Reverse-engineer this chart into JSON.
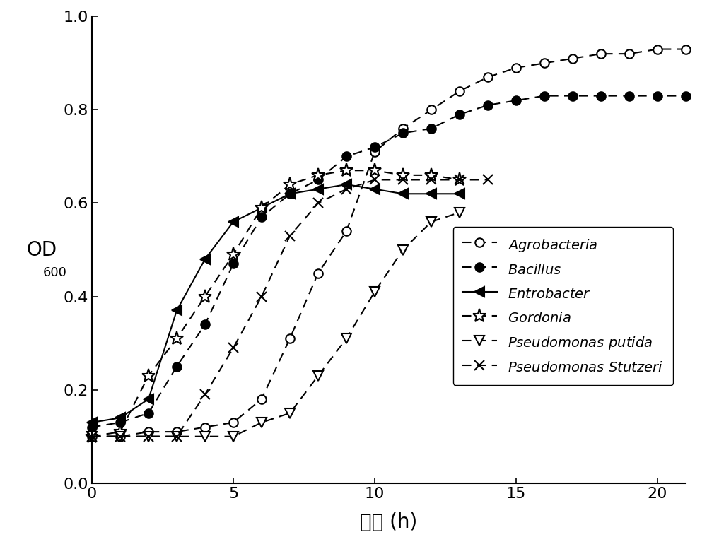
{
  "xlabel": "时间 (h)",
  "xlim": [
    0,
    21
  ],
  "ylim": [
    0.0,
    1.0
  ],
  "xticks": [
    0,
    5,
    10,
    15,
    20
  ],
  "yticks": [
    0.0,
    0.2,
    0.4,
    0.6,
    0.8,
    1.0
  ],
  "Agrobacteria": {
    "x": [
      0,
      1,
      2,
      3,
      4,
      5,
      6,
      7,
      8,
      9,
      10,
      11,
      12,
      13,
      14,
      15,
      16,
      17,
      18,
      19,
      20,
      21
    ],
    "y": [
      0.1,
      0.1,
      0.11,
      0.11,
      0.12,
      0.13,
      0.18,
      0.31,
      0.45,
      0.54,
      0.71,
      0.76,
      0.8,
      0.84,
      0.87,
      0.89,
      0.9,
      0.91,
      0.92,
      0.92,
      0.93,
      0.93
    ],
    "color": "#000000",
    "linestyle": "--",
    "marker": "o",
    "mfc": "white",
    "markersize": 9,
    "linewidth": 1.5
  },
  "Bacillus": {
    "x": [
      0,
      1,
      2,
      3,
      4,
      5,
      6,
      7,
      8,
      9,
      10,
      11,
      12,
      13,
      14,
      15,
      16,
      17,
      18,
      19,
      20,
      21
    ],
    "y": [
      0.12,
      0.13,
      0.15,
      0.25,
      0.34,
      0.47,
      0.57,
      0.62,
      0.65,
      0.7,
      0.72,
      0.75,
      0.76,
      0.79,
      0.81,
      0.82,
      0.83,
      0.83,
      0.83,
      0.83,
      0.83,
      0.83
    ],
    "color": "#000000",
    "linestyle": "--",
    "marker": "o",
    "mfc": "#000000",
    "markersize": 9,
    "linewidth": 1.5
  },
  "Entrobacter": {
    "x": [
      0,
      1,
      2,
      3,
      4,
      5,
      6,
      7,
      8,
      9,
      10,
      11,
      12,
      13
    ],
    "y": [
      0.13,
      0.14,
      0.18,
      0.37,
      0.48,
      0.56,
      0.59,
      0.62,
      0.63,
      0.64,
      0.63,
      0.62,
      0.62,
      0.62
    ],
    "color": "#000000",
    "linestyle": "-",
    "marker": "<",
    "mfc": "#000000",
    "markersize": 10,
    "linewidth": 1.5
  },
  "Gordonia": {
    "x": [
      0,
      1,
      2,
      3,
      4,
      5,
      6,
      7,
      8,
      9,
      10,
      11,
      12,
      13
    ],
    "y": [
      0.1,
      0.11,
      0.23,
      0.31,
      0.4,
      0.49,
      0.59,
      0.64,
      0.66,
      0.67,
      0.67,
      0.66,
      0.66,
      0.65
    ],
    "color": "#000000",
    "linestyle": "--",
    "marker": "*",
    "mfc": "white",
    "markersize": 14,
    "linewidth": 1.5
  },
  "Pseudomonas_putida": {
    "x": [
      0,
      1,
      2,
      3,
      4,
      5,
      6,
      7,
      8,
      9,
      10,
      11,
      12,
      13
    ],
    "y": [
      0.1,
      0.1,
      0.1,
      0.1,
      0.1,
      0.1,
      0.13,
      0.15,
      0.23,
      0.31,
      0.41,
      0.5,
      0.56,
      0.58
    ],
    "color": "#000000",
    "linestyle": "--",
    "marker": "v",
    "mfc": "white",
    "markersize": 10,
    "linewidth": 1.5
  },
  "Pseudomonas_Stutzeri": {
    "x": [
      0,
      1,
      2,
      3,
      4,
      5,
      6,
      7,
      8,
      9,
      10,
      11,
      12,
      13,
      14
    ],
    "y": [
      0.1,
      0.1,
      0.1,
      0.1,
      0.19,
      0.29,
      0.4,
      0.53,
      0.6,
      0.63,
      0.65,
      0.65,
      0.65,
      0.65,
      0.65
    ],
    "color": "#000000",
    "linestyle": "--",
    "marker": "x",
    "mfc": "none",
    "markersize": 10,
    "linewidth": 1.5
  },
  "background_color": "#ffffff"
}
